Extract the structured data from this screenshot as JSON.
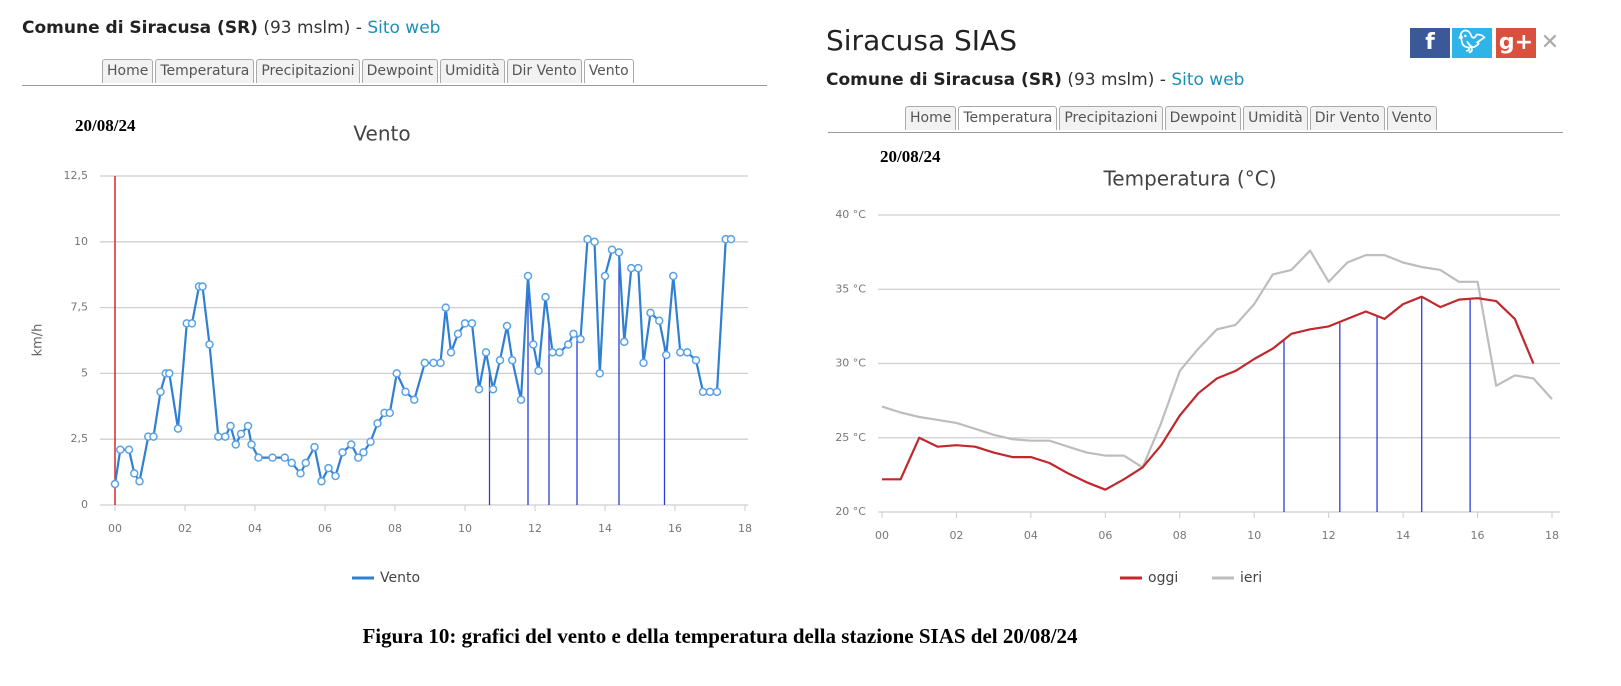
{
  "left_panel": {
    "header": {
      "station": "Comune di Siracusa (SR)",
      "altitude": "(93 mslm)",
      "separator": "-",
      "link": "Sito web"
    },
    "tabs": [
      "Home",
      "Temperatura",
      "Precipitazioni",
      "Dewpoint",
      "Umidità",
      "Dir Vento",
      "Vento"
    ]
  },
  "right_panel": {
    "site_title": "Siracusa SIAS",
    "header": {
      "station": "Comune di Siracusa (SR)",
      "altitude": "(93 mslm)",
      "separator": "-",
      "link": "Sito web"
    },
    "tabs": [
      "Home",
      "Temperatura",
      "Precipitazioni",
      "Dewpoint",
      "Umidità",
      "Dir Vento",
      "Vento"
    ]
  },
  "chart_data": [
    {
      "type": "line",
      "title": "Vento",
      "date": "20/08/24",
      "y_label": "km/h",
      "markers": true,
      "grid": true,
      "xlim": [
        0,
        18
      ],
      "xticks": [
        {
          "value": 0,
          "label": "00"
        },
        {
          "value": 2,
          "label": "02"
        },
        {
          "value": 4,
          "label": "04"
        },
        {
          "value": 6,
          "label": "06"
        },
        {
          "value": 8,
          "label": "08"
        },
        10,
        12,
        14,
        16,
        18
      ],
      "ylim": [
        0,
        12.5
      ],
      "yticks": [
        0,
        {
          "value": 2.5,
          "label": "2,5"
        },
        5,
        {
          "value": 7.5,
          "label": "7,5"
        },
        10,
        {
          "value": 12.5,
          "label": "12,5"
        }
      ],
      "x": [
        0,
        0.15,
        0.4,
        0.55,
        0.7,
        0.95,
        1.1,
        1.3,
        1.45,
        1.55,
        1.8,
        2.05,
        2.2,
        2.4,
        2.5,
        2.7,
        2.95,
        3.15,
        3.3,
        3.45,
        3.6,
        3.8,
        3.9,
        4.1,
        4.5,
        4.85,
        5.05,
        5.3,
        5.45,
        5.7,
        5.9,
        6.1,
        6.3,
        6.5,
        6.75,
        6.95,
        7.1,
        7.3,
        7.5,
        7.7,
        7.85,
        8.05,
        8.3,
        8.55,
        8.85,
        9.1,
        9.3,
        9.45,
        9.6,
        9.8,
        10.0,
        10.2,
        10.4,
        10.6,
        10.8,
        11.0,
        11.2,
        11.35,
        11.6,
        11.8,
        11.95,
        12.1,
        12.3,
        12.5,
        12.7,
        12.95,
        13.1,
        13.3,
        13.5,
        13.7,
        13.85,
        14.0,
        14.2,
        14.4,
        14.55,
        14.75,
        14.95,
        15.1,
        15.3,
        15.55,
        15.75,
        15.95,
        16.15,
        16.35,
        16.6,
        16.8,
        17.0,
        17.2,
        17.45,
        17.6
      ],
      "series": [
        {
          "name": "Vento",
          "color": "#2f7fd3",
          "values": [
            0.8,
            2.1,
            2.1,
            1.2,
            0.9,
            2.6,
            2.6,
            4.3,
            5.0,
            5.0,
            2.9,
            6.9,
            6.9,
            8.3,
            8.3,
            6.1,
            2.6,
            2.6,
            3.0,
            2.3,
            2.7,
            3.0,
            2.3,
            1.8,
            1.8,
            1.8,
            1.6,
            1.2,
            1.6,
            2.2,
            0.9,
            1.4,
            1.1,
            2.0,
            2.3,
            1.8,
            2.0,
            2.4,
            3.1,
            3.5,
            3.5,
            5.0,
            4.3,
            4.0,
            5.4,
            5.4,
            5.4,
            7.5,
            5.8,
            6.5,
            6.9,
            6.9,
            4.4,
            5.8,
            4.4,
            5.5,
            6.8,
            5.5,
            4.0,
            8.7,
            6.1,
            5.1,
            7.9,
            5.8,
            5.8,
            6.1,
            6.5,
            6.3,
            10.1,
            10.0,
            5.0,
            8.7,
            9.7,
            9.6,
            6.2,
            9.0,
            9.0,
            5.4,
            7.3,
            7.0,
            5.7,
            8.7,
            5.8,
            5.8,
            5.5,
            4.3,
            4.3,
            4.3,
            10.1,
            10.1
          ]
        }
      ],
      "vertical_lines": [
        10.7,
        11.8,
        12.4,
        13.2,
        14.4,
        15.7
      ],
      "vertical_line_color": "#2b3fd6"
    },
    {
      "type": "line",
      "title": "Temperatura (°C)",
      "date": "20/08/24",
      "markers": false,
      "grid": true,
      "xlim": [
        0,
        18
      ],
      "xticks": [
        {
          "value": 0,
          "label": "00"
        },
        {
          "value": 2,
          "label": "02"
        },
        {
          "value": 4,
          "label": "04"
        },
        {
          "value": 6,
          "label": "06"
        },
        {
          "value": 8,
          "label": "08"
        },
        10,
        12,
        14,
        16,
        18
      ],
      "ylim": [
        20,
        40
      ],
      "yticks": [
        {
          "value": 20,
          "label": "20 °C"
        },
        {
          "value": 25,
          "label": "25 °C"
        },
        {
          "value": 30,
          "label": "30 °C"
        },
        {
          "value": 35,
          "label": "35 °C"
        },
        {
          "value": 40,
          "label": "40 °C"
        }
      ],
      "x": [
        0,
        0.5,
        1,
        1.5,
        2,
        2.5,
        3,
        3.5,
        4,
        4.5,
        5,
        5.5,
        6,
        6.5,
        7,
        7.5,
        8,
        8.5,
        9,
        9.5,
        10,
        10.5,
        11,
        11.5,
        12,
        12.5,
        13,
        13.5,
        14,
        14.5,
        15,
        15.5,
        16,
        16.5,
        17,
        17.5,
        18
      ],
      "series": [
        {
          "name": "oggi",
          "color": "#c0282d",
          "values": [
            22.2,
            22.2,
            25.0,
            24.4,
            24.5,
            24.4,
            24.0,
            23.7,
            23.7,
            23.3,
            22.6,
            22.0,
            21.5,
            22.2,
            23.0,
            24.5,
            26.5,
            28.0,
            29.0,
            29.5,
            30.3,
            31.0,
            32.0,
            32.3,
            32.5,
            33.0,
            33.5,
            33.0,
            34.0,
            34.5,
            33.8,
            34.3,
            34.4,
            34.2,
            33.0,
            30.0,
            null
          ]
        },
        {
          "name": "ieri",
          "color": "#bdbdbd",
          "values": [
            27.1,
            26.7,
            26.4,
            26.2,
            26.0,
            25.6,
            25.2,
            24.9,
            24.8,
            24.8,
            24.4,
            24.0,
            23.8,
            23.8,
            23.0,
            26.0,
            29.5,
            31.0,
            32.3,
            32.6,
            34.0,
            36.0,
            36.3,
            37.6,
            35.5,
            36.8,
            37.3,
            37.3,
            36.8,
            36.5,
            36.3,
            35.5,
            35.5,
            28.5,
            29.2,
            29.0,
            27.6
          ]
        }
      ],
      "vertical_lines": [
        10.8,
        12.3,
        13.3,
        14.5,
        15.8
      ],
      "vertical_line_color": "#2b3fd6"
    }
  ],
  "caption": "Figura 10: grafici del vento e della temperatura della stazione SIAS del 20/08/24"
}
